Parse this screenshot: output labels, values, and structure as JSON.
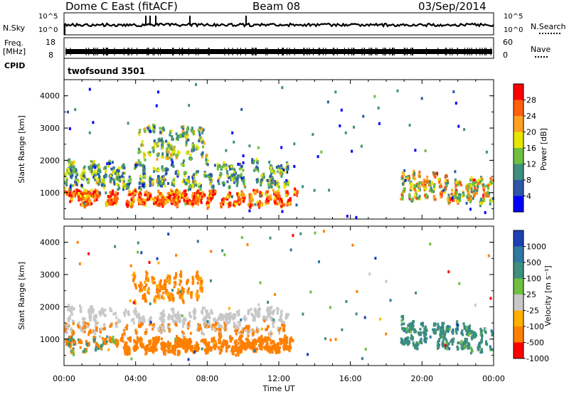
{
  "header": {
    "radar": "Dome C East (fitACF)",
    "beam": "Beam 08",
    "date": "03/Sep/2014"
  },
  "top_panels": {
    "nsky_label": "N.Sky",
    "nsky_ticks": [
      "10^5",
      "10^0"
    ],
    "nsearch_label": "N.Search",
    "nsearch_ticks": [
      "10^5",
      "10^0"
    ],
    "freq_label": "Freq.",
    "freq_unit": "[MHz]",
    "freq_ticks": [
      "18",
      "8"
    ],
    "nave_label": "Nave",
    "nave_ticks": [
      "60",
      "0"
    ],
    "cpid_label": "CPID",
    "cpid_value": "twofsound 3501"
  },
  "chart_data": [
    {
      "type": "heatmap",
      "name": "power",
      "ylabel": "Slant Range [km]",
      "ylim": [
        180,
        4500
      ],
      "yticks": [
        "1000",
        "2000",
        "3000",
        "4000"
      ],
      "colorbar_label": "Power [dB]",
      "colorbar_ticks": [
        "4",
        "8",
        "12",
        "16",
        "20",
        "24",
        "28"
      ],
      "colorscale": [
        "#0000ff",
        "#2d58a8",
        "#3f8f7d",
        "#6fbf40",
        "#e6e600",
        "#ffa020",
        "#ff6010",
        "#ff0000"
      ]
    },
    {
      "type": "heatmap",
      "name": "velocity",
      "ylabel": "Slant Range [km]",
      "ylim": [
        180,
        4500
      ],
      "yticks": [
        "1000",
        "2000",
        "3000",
        "4000"
      ],
      "colorbar_label": "Velocity [m s⁻¹]",
      "colorbar_ticks": [
        "1000",
        "500",
        "100",
        "25",
        "-25",
        "-100",
        "-500",
        "-1000"
      ],
      "colorscale": [
        "#1e40b4",
        "#2d7aa0",
        "#3f8f7d",
        "#6fbf40",
        "#c8c8c8",
        "#ffb000",
        "#ff8000",
        "#ff0000"
      ]
    }
  ],
  "xaxis": {
    "label": "Time UT",
    "ticks": [
      "00:00",
      "04:00",
      "08:00",
      "12:00",
      "16:00",
      "20:00",
      "00:00"
    ],
    "range_hours": [
      0,
      24
    ]
  }
}
